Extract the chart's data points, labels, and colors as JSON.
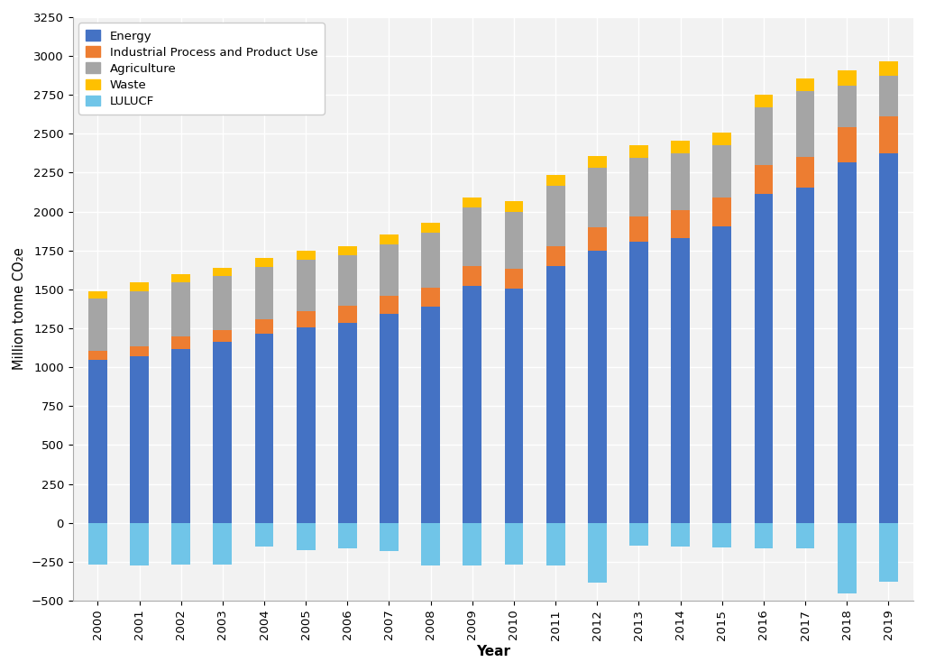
{
  "years": [
    2000,
    2001,
    2002,
    2003,
    2004,
    2005,
    2006,
    2007,
    2008,
    2009,
    2010,
    2011,
    2012,
    2013,
    2014,
    2015,
    2016,
    2017,
    2018,
    2019
  ],
  "energy": [
    1045,
    1070,
    1115,
    1165,
    1215,
    1255,
    1285,
    1345,
    1390,
    1525,
    1505,
    1650,
    1750,
    1805,
    1830,
    1905,
    2115,
    2155,
    2315,
    2375
  ],
  "ippu": [
    60,
    65,
    80,
    75,
    95,
    105,
    110,
    115,
    120,
    125,
    125,
    125,
    150,
    165,
    180,
    185,
    185,
    195,
    230,
    235
  ],
  "agri": [
    335,
    355,
    350,
    345,
    335,
    330,
    325,
    330,
    355,
    375,
    370,
    390,
    380,
    375,
    365,
    335,
    370,
    425,
    265,
    265
  ],
  "waste": [
    50,
    55,
    55,
    55,
    55,
    60,
    60,
    60,
    65,
    65,
    65,
    70,
    75,
    80,
    80,
    85,
    80,
    80,
    100,
    90
  ],
  "lulucf": [
    -270,
    -275,
    -270,
    -270,
    -150,
    -175,
    -165,
    -180,
    -275,
    -275,
    -270,
    -275,
    -385,
    -145,
    -155,
    -160,
    -165,
    -165,
    -455,
    -380
  ],
  "colors": {
    "energy": "#4472C4",
    "ippu": "#ED7D31",
    "agri": "#A5A5A5",
    "waste": "#FFC000",
    "lulucf": "#70C5E8"
  },
  "legend_labels": [
    "Energy",
    "Industrial Process and Product Use",
    "Agriculture",
    "Waste",
    "LULUCF"
  ],
  "xlabel": "Year",
  "ylabel": "Million tonne CO₂e",
  "ylim": [
    -500,
    3250
  ],
  "yticks": [
    -500,
    -250,
    0,
    250,
    500,
    750,
    1000,
    1250,
    1500,
    1750,
    2000,
    2250,
    2500,
    2750,
    3000,
    3250
  ],
  "bg_color": "#F2F2F2",
  "grid_color": "#FFFFFF"
}
